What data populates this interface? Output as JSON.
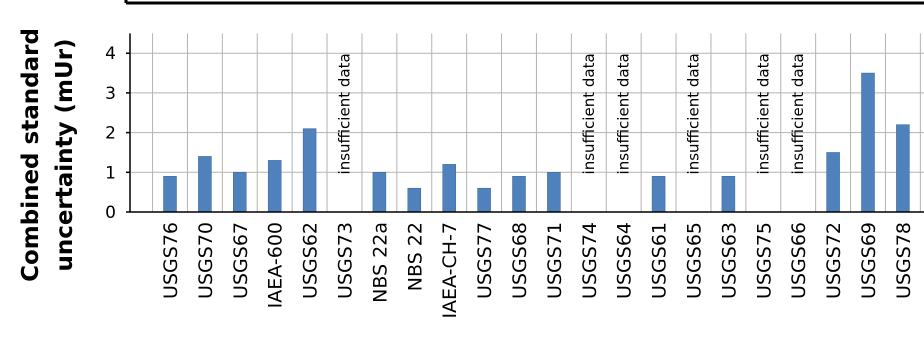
{
  "chart_data": {
    "type": "bar",
    "ylabel": "Combined standard uncertainty (mUr)",
    "ylabel_lines": [
      "Combined standard",
      "uncertainty (mUr)"
    ],
    "ylim": [
      0,
      4.5
    ],
    "yticks": [
      "0",
      "1",
      "2",
      "3",
      "4"
    ],
    "grid": true,
    "bar_color": "#4f81bd",
    "categories": [
      "USGS76",
      "USGS70",
      "USGS67",
      "IAEA-600",
      "USGS62",
      "USGS73",
      "NBS 22a",
      "NBS 22",
      "IAEA-CH-7",
      "USGS77",
      "USGS68",
      "USGS71",
      "USGS74",
      "USGS64",
      "USGS61",
      "USGS65",
      "USGS63",
      "USGS75",
      "USGS66",
      "USGS72",
      "USGS69",
      "USGS78"
    ],
    "values": [
      0.9,
      1.4,
      1.0,
      1.3,
      2.1,
      null,
      1.0,
      0.6,
      1.2,
      0.6,
      0.9,
      1.0,
      null,
      null,
      0.9,
      null,
      0.9,
      null,
      null,
      1.5,
      3.5,
      2.2
    ],
    "missing_label": "insufficient data"
  }
}
